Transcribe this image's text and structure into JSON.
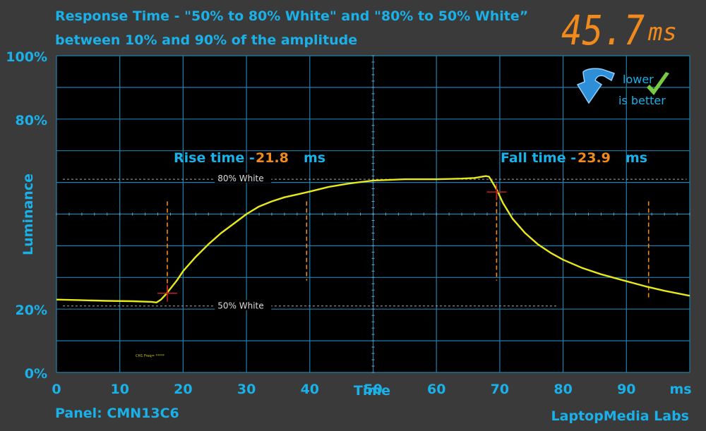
{
  "title_line1": "Response Time - \"50% to 80% White\" and \"80% to 50% White”",
  "title_line2": "between 10% and 90% of the amplitude",
  "total_value": "45.7",
  "total_unit": "ms",
  "badge": {
    "line1": "lower",
    "line2": "is better"
  },
  "rise": {
    "label": "Rise time -",
    "value": "21.8",
    "unit": "ms"
  },
  "fall": {
    "label": "Fall time -",
    "value": "23.9",
    "unit": "ms"
  },
  "ref_labels": {
    "high": "80% White",
    "low": "50% White"
  },
  "scope_note": "CH1 Freq= *****",
  "footer_left": "Panel: CMN13C6",
  "footer_right": "LaptopMedia Labs",
  "colors": {
    "background": "#3a3a3a",
    "plot_bg": "#000000",
    "grid": "#1f7fae",
    "accent_text": "#1ab0e8",
    "orange": "#f08a1c",
    "trace": "#e8e81a",
    "marker": "#c81e1e"
  },
  "chart_data": {
    "type": "line",
    "xlabel": "Time",
    "xunit": "ms",
    "ylabel": "Luminance",
    "x_ticks": [
      "0",
      "10",
      "20",
      "30",
      "40",
      "50",
      "60",
      "70",
      "80",
      "90"
    ],
    "y_ticks": [
      "0%",
      "20%",
      "80%",
      "100%"
    ],
    "xlim": [
      0,
      100
    ],
    "ylim": [
      0,
      100
    ],
    "grid": true,
    "reference_levels": {
      "high": 61,
      "low": 21
    },
    "transition_markers": [
      17.5,
      39.5,
      69.5,
      93.5
    ],
    "crossing_points": [
      {
        "x": 17.5,
        "y": 25
      },
      {
        "x": 69.5,
        "y": 57
      }
    ],
    "series": [
      {
        "x": [
          0,
          4,
          8,
          12,
          15,
          15.8,
          16.5,
          17.2,
          18,
          19,
          20,
          22,
          24,
          26,
          28,
          30,
          32,
          34,
          36,
          38,
          40,
          43,
          46,
          50,
          55,
          60,
          64,
          66,
          67.8,
          68.3,
          69,
          69.5,
          70.5,
          72,
          74,
          76,
          78,
          80,
          83,
          86,
          90,
          93,
          96,
          100
        ],
        "y": [
          23,
          22.8,
          22.6,
          22.5,
          22.3,
          22.1,
          23,
          24.5,
          26.5,
          29,
          32,
          36.5,
          40.5,
          44,
          47,
          50,
          52.4,
          54,
          55.3,
          56.2,
          57.1,
          58.6,
          59.6,
          60.6,
          61,
          61,
          61.2,
          61.4,
          62,
          61.8,
          59.5,
          57.8,
          53.5,
          48.6,
          44,
          40.5,
          37.8,
          35.6,
          33,
          31,
          28.8,
          27.2,
          25.8,
          24.2
        ]
      }
    ]
  }
}
